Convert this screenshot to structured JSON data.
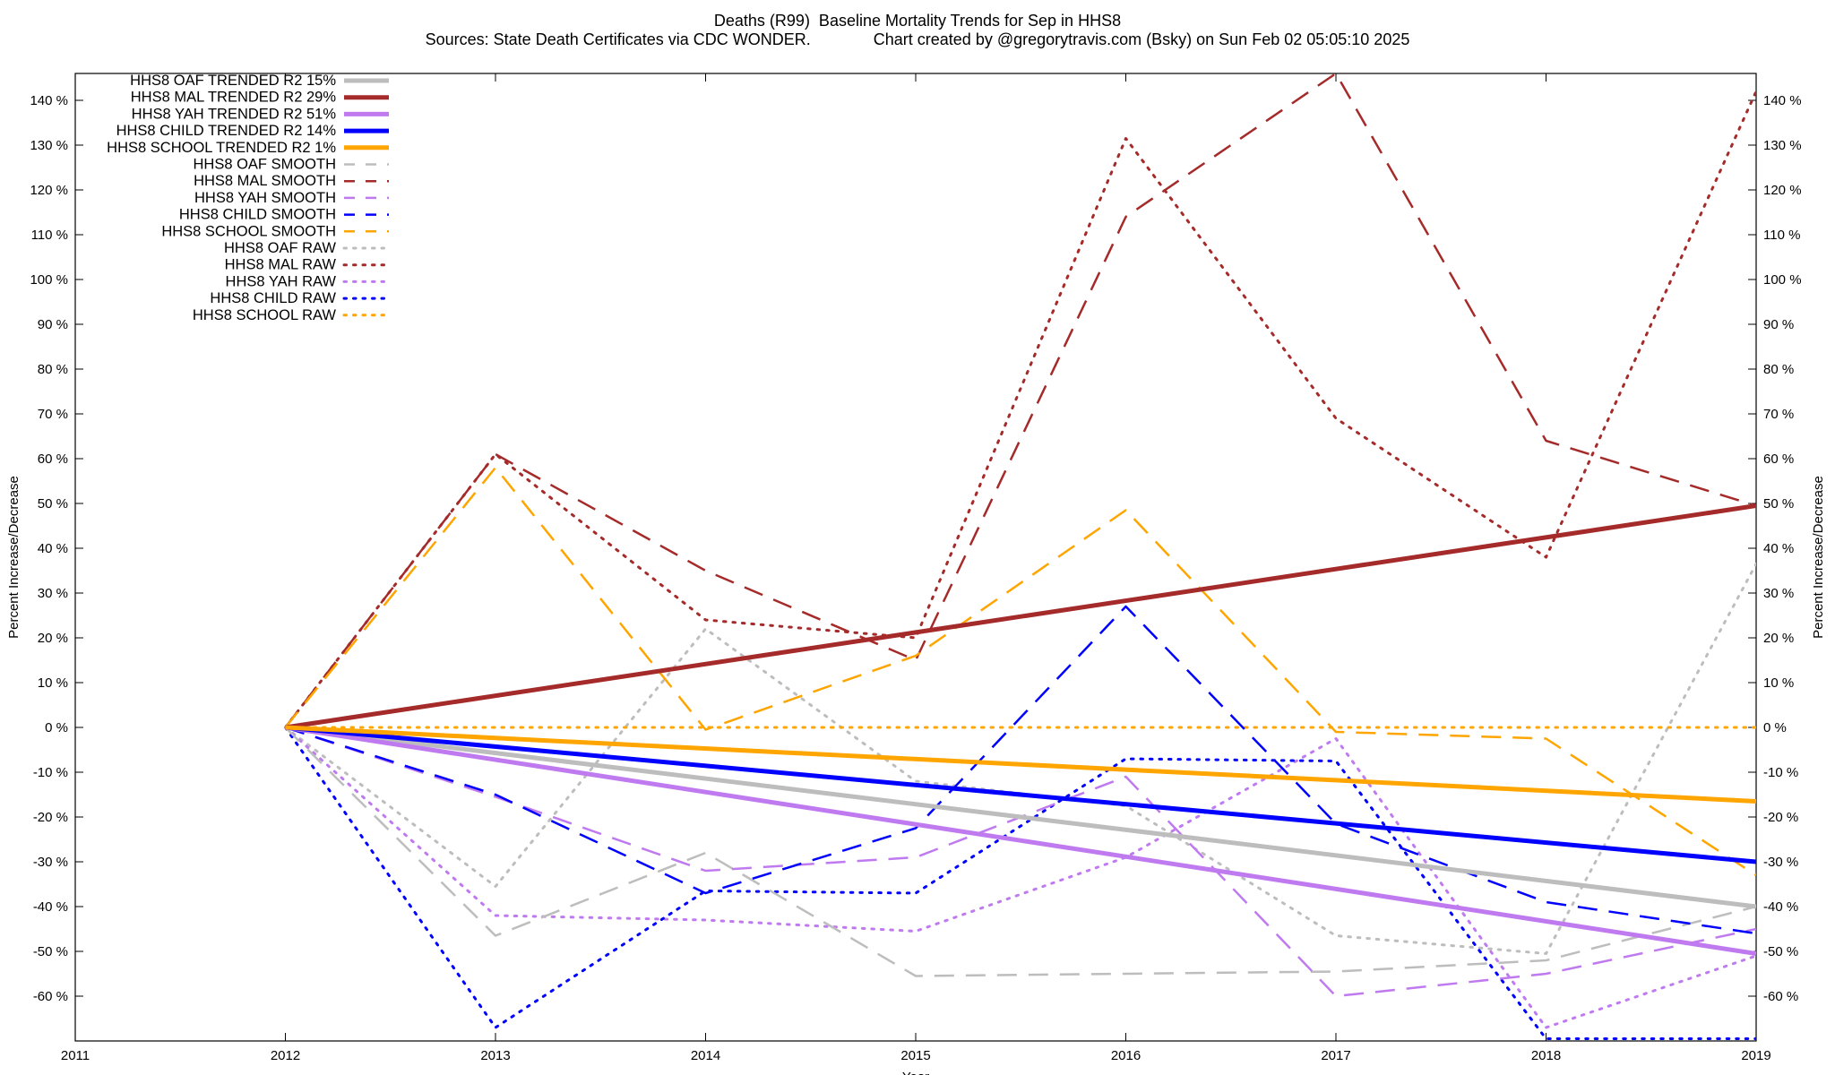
{
  "title": {
    "line1": "Deaths (R99)  Baseline Mortality Trends for Sep in HHS8",
    "line2": "Sources: State Death Certificates via CDC WONDER.              Chart created by @gregorytravis.com (Bsky) on Sun Feb 02 05:05:10 2025"
  },
  "chart_data": {
    "type": "line",
    "title": "Deaths (R99)  Baseline Mortality Trends for Sep in HHS8",
    "subtitle": "Sources: State Death Certificates via CDC WONDER.              Chart created by @gregorytravis.com (Bsky) on Sun Feb 02 05:05:10 2025",
    "xlabel": "Year",
    "ylabel": "Percent Increase/Decrease",
    "y2label": "Percent Increase/Decrease",
    "xlim": [
      2011,
      2019
    ],
    "ylim": [
      -70,
      146
    ],
    "x_ticks": [
      "2011",
      "2012",
      "2013",
      "2014",
      "2015",
      "2016",
      "2017",
      "2018",
      "2019"
    ],
    "y_ticks": [
      {
        "v": 140,
        "label": "140 %"
      },
      {
        "v": 130,
        "label": "130 %"
      },
      {
        "v": 120,
        "label": "120 %"
      },
      {
        "v": 110,
        "label": "110 %"
      },
      {
        "v": 100,
        "label": "100 %"
      },
      {
        "v": 90,
        "label": "90 %"
      },
      {
        "v": 80,
        "label": "80 %"
      },
      {
        "v": 70,
        "label": "70 %"
      },
      {
        "v": 60,
        "label": "60 %"
      },
      {
        "v": 50,
        "label": "50 %"
      },
      {
        "v": 40,
        "label": "40 %"
      },
      {
        "v": 30,
        "label": "30 %"
      },
      {
        "v": 20,
        "label": "20 %"
      },
      {
        "v": 10,
        "label": "10 %"
      },
      {
        "v": 0,
        "label": "0 %"
      },
      {
        "v": -10,
        "label": "-10 %"
      },
      {
        "v": -20,
        "label": "-20 %"
      },
      {
        "v": -30,
        "label": "-30 %"
      },
      {
        "v": -40,
        "label": "-40 %"
      },
      {
        "v": -50,
        "label": "-50 %"
      },
      {
        "v": -60,
        "label": "-60 %"
      }
    ],
    "grid": false,
    "legend_position": "top-left",
    "series": [
      {
        "name": "HHS8 OAF TRENDED R2  15%",
        "color": "#bdbdbd",
        "style": "solid",
        "width": 5,
        "x": [
          2012,
          2019
        ],
        "y": [
          0,
          -40
        ]
      },
      {
        "name": "HHS8 MAL TRENDED R2  29%",
        "color": "#a52a2a",
        "style": "solid",
        "width": 5,
        "x": [
          2012,
          2019
        ],
        "y": [
          0,
          49.5
        ]
      },
      {
        "name": "HHS8 YAH TRENDED R2  51%",
        "color": "#bf7af0",
        "style": "solid",
        "width": 5,
        "x": [
          2012,
          2019
        ],
        "y": [
          0,
          -50.5
        ]
      },
      {
        "name": "HHS8 CHILD TRENDED R2  14%",
        "color": "#0000ff",
        "style": "solid",
        "width": 5,
        "x": [
          2012,
          2019
        ],
        "y": [
          0,
          -30
        ]
      },
      {
        "name": "HHS8 SCHOOL TRENDED R2   1%",
        "color": "#ffa500",
        "style": "solid",
        "width": 5,
        "x": [
          2012,
          2019
        ],
        "y": [
          0,
          -16.5
        ]
      },
      {
        "name": "HHS8 OAF SMOOTH",
        "color": "#bdbdbd",
        "style": "dashed",
        "width": 2.5,
        "x": [
          2012,
          2013,
          2014,
          2015,
          2016,
          2017,
          2018,
          2019
        ],
        "y": [
          0,
          -46.5,
          -28,
          -55.5,
          -55,
          -54.5,
          -52,
          -40
        ]
      },
      {
        "name": "HHS8 MAL SMOOTH",
        "color": "#a52a2a",
        "style": "dashed",
        "width": 2.5,
        "x": [
          2012,
          2013,
          2014,
          2015,
          2016,
          2017,
          2018,
          2019
        ],
        "y": [
          0,
          61,
          35,
          15,
          114,
          146,
          64,
          49.5
        ]
      },
      {
        "name": "HHS8 YAH SMOOTH",
        "color": "#bf7af0",
        "style": "dashed",
        "width": 2.5,
        "x": [
          2012,
          2013,
          2014,
          2015,
          2016,
          2017,
          2018,
          2019
        ],
        "y": [
          0,
          -15.5,
          -32,
          -29,
          -11,
          -60,
          -55,
          -45
        ]
      },
      {
        "name": "HHS8 CHILD SMOOTH",
        "color": "#0000ff",
        "style": "dashed",
        "width": 2.5,
        "x": [
          2012,
          2013,
          2014,
          2015,
          2016,
          2017,
          2018,
          2019
        ],
        "y": [
          0,
          -15,
          -37,
          -22.5,
          27,
          -21.5,
          -39,
          -46
        ]
      },
      {
        "name": "HHS8 SCHOOL SMOOTH",
        "color": "#ffa500",
        "style": "dashed",
        "width": 2.5,
        "x": [
          2012,
          2013,
          2014,
          2015,
          2016,
          2017,
          2018,
          2019
        ],
        "y": [
          0,
          58,
          -0.5,
          16,
          48.5,
          -1,
          -2.5,
          -33
        ]
      },
      {
        "name": "HHS8 OAF RAW",
        "color": "#bdbdbd",
        "style": "dotted",
        "width": 3,
        "x": [
          2012,
          2013,
          2014,
          2015,
          2016,
          2017,
          2018,
          2019
        ],
        "y": [
          0,
          -35.5,
          22,
          -12,
          -17.5,
          -46.5,
          -50.5,
          36.5
        ]
      },
      {
        "name": "HHS8 MAL RAW",
        "color": "#a52a2a",
        "style": "dotted",
        "width": 3,
        "x": [
          2012,
          2013,
          2014,
          2015,
          2016,
          2017,
          2018,
          2019
        ],
        "y": [
          0,
          61,
          24,
          20,
          131.5,
          69,
          38,
          142
        ]
      },
      {
        "name": "HHS8 YAH RAW",
        "color": "#bf7af0",
        "style": "dotted",
        "width": 3,
        "x": [
          2012,
          2013,
          2014,
          2015,
          2016,
          2017,
          2018,
          2019
        ],
        "y": [
          0,
          -42,
          -43,
          -45.5,
          -29,
          -2.5,
          -67,
          -51
        ]
      },
      {
        "name": "HHS8 CHILD RAW",
        "color": "#0000ff",
        "style": "dotted",
        "width": 3,
        "x": [
          2012,
          2013,
          2014,
          2015,
          2016,
          2017,
          2018,
          2019
        ],
        "y": [
          0,
          -67,
          -36.5,
          -37,
          -7,
          -7.5,
          -69.5,
          -69.5
        ]
      },
      {
        "name": "HHS8 SCHOOL RAW",
        "color": "#ffa500",
        "style": "dotted",
        "width": 3,
        "x": [
          2012,
          2013,
          2014,
          2015,
          2016,
          2017,
          2018,
          2019
        ],
        "y": [
          0,
          0,
          0,
          0,
          0,
          0,
          0,
          0
        ]
      }
    ]
  }
}
